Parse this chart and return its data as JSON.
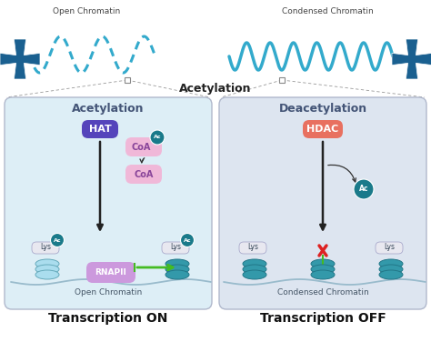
{
  "bg_color": "#ffffff",
  "panel_bg_left": "#ddeef6",
  "panel_bg_right": "#dde5f0",
  "panel_border": "#b0b8cc",
  "hat_color": "#5544bb",
  "hat_text": "HAT",
  "hdac_color": "#e87060",
  "hdac_text": "HDAC",
  "coa_color": "#f0b8d8",
  "coa_text": "CoA",
  "ac_color": "#1a7a8a",
  "ac_text": "Ac",
  "lys_color": "#e8e8f0",
  "lys_text": "Lys",
  "rnapii_color": "#cc99dd",
  "rnapii_text": "RNAPII",
  "arrow_color": "#222222",
  "green_arrow": "#44bb22",
  "red_x": "#dd2222",
  "green_stem": "#44bb22",
  "histone_color_light": "#88ccdd",
  "histone_color_mid": "#3399aa",
  "histone_dark": "#227788",
  "open_chromatin_text": "Open Chromatin",
  "condensed_chromatin_text": "Condensed Chromatin",
  "trans_on_text": "Transcription ON",
  "trans_off_text": "Transcription OFF",
  "top_left_text": "Open Chromatin",
  "top_right_text": "Condensed Chromatin",
  "acetylation_center_text": "Acetylation",
  "left_panel_label": "Acetylation",
  "right_panel_label": "Deacetylation",
  "chrom_color_open": "#33aacc",
  "chrom_color_condensed": "#33aacc",
  "chr_body_color": "#1a6090"
}
